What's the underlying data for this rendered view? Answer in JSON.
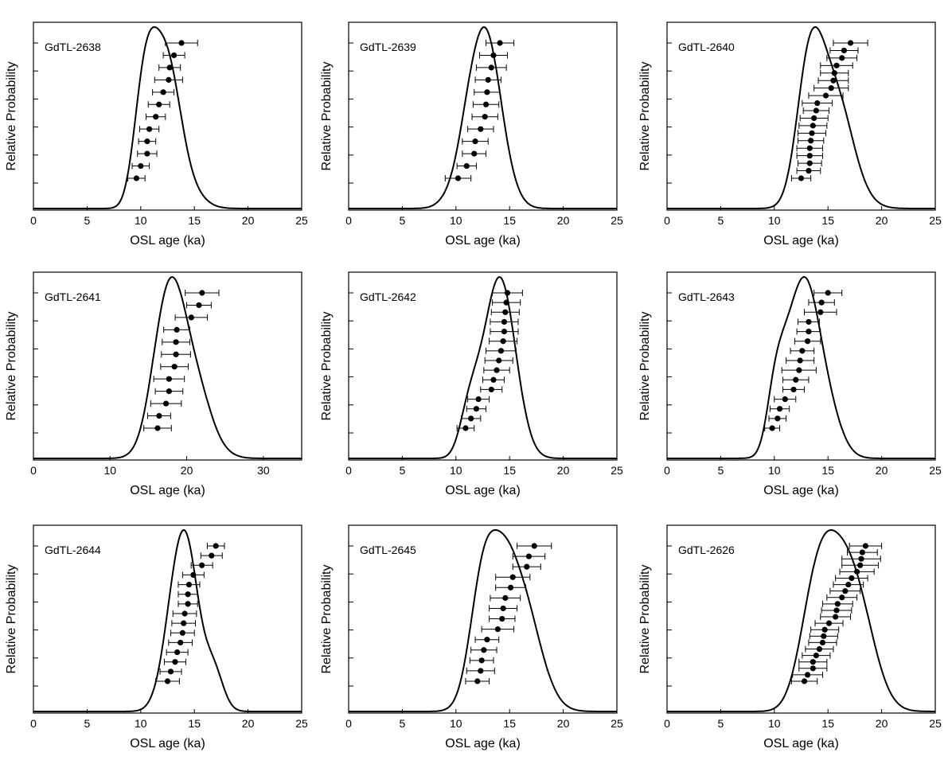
{
  "chart_data": [
    {
      "type": "scatter",
      "panel_label": "GdTL-2638",
      "xlabel": "OSL age (ka)",
      "ylabel": "Relative Probability",
      "xlim": [
        0,
        25
      ],
      "xticks": [
        0,
        5,
        10,
        15,
        20,
        25
      ],
      "curve_peak_ka": 11.8,
      "points": [
        {
          "age": 9.6,
          "err": 0.8
        },
        {
          "age": 10.0,
          "err": 0.8
        },
        {
          "age": 10.6,
          "err": 0.9
        },
        {
          "age": 10.6,
          "err": 0.8
        },
        {
          "age": 10.8,
          "err": 0.9
        },
        {
          "age": 11.4,
          "err": 0.9
        },
        {
          "age": 11.7,
          "err": 1.0
        },
        {
          "age": 12.1,
          "err": 1.0
        },
        {
          "age": 12.6,
          "err": 1.3
        },
        {
          "age": 12.7,
          "err": 1.0
        },
        {
          "age": 13.1,
          "err": 1.0
        },
        {
          "age": 13.8,
          "err": 1.5
        }
      ]
    },
    {
      "type": "scatter",
      "panel_label": "GdTL-2639",
      "xlabel": "OSL age (ka)",
      "ylabel": "Relative Probability",
      "xlim": [
        0,
        25
      ],
      "xticks": [
        0,
        5,
        10,
        15,
        20,
        25
      ],
      "curve_peak_ka": 12.7,
      "points": [
        {
          "age": 10.2,
          "err": 1.2
        },
        {
          "age": 11.0,
          "err": 0.9
        },
        {
          "age": 11.7,
          "err": 1.1
        },
        {
          "age": 11.8,
          "err": 1.2
        },
        {
          "age": 12.3,
          "err": 1.2
        },
        {
          "age": 12.7,
          "err": 1.2
        },
        {
          "age": 12.8,
          "err": 1.2
        },
        {
          "age": 12.9,
          "err": 1.2
        },
        {
          "age": 13.0,
          "err": 1.2
        },
        {
          "age": 13.3,
          "err": 1.4
        },
        {
          "age": 13.5,
          "err": 1.3
        },
        {
          "age": 14.1,
          "err": 1.3
        }
      ]
    },
    {
      "type": "scatter",
      "panel_label": "GdTL-2640",
      "xlabel": "OSL age (ka)",
      "ylabel": "Relative Probability",
      "xlim": [
        0,
        25
      ],
      "xticks": [
        0,
        5,
        10,
        15,
        20,
        25
      ],
      "curve_peak_ka": 13.9,
      "points": [
        {
          "age": 12.5,
          "err": 0.9
        },
        {
          "age": 13.2,
          "err": 1.1
        },
        {
          "age": 13.3,
          "err": 1.1
        },
        {
          "age": 13.3,
          "err": 1.2
        },
        {
          "age": 13.3,
          "err": 1.2
        },
        {
          "age": 13.4,
          "err": 1.2
        },
        {
          "age": 13.5,
          "err": 1.3
        },
        {
          "age": 13.6,
          "err": 1.3
        },
        {
          "age": 13.7,
          "err": 1.3
        },
        {
          "age": 13.9,
          "err": 1.2
        },
        {
          "age": 14.0,
          "err": 1.4
        },
        {
          "age": 14.8,
          "err": 1.6
        },
        {
          "age": 15.3,
          "err": 1.6
        },
        {
          "age": 15.5,
          "err": 1.4
        },
        {
          "age": 15.6,
          "err": 1.3
        },
        {
          "age": 15.8,
          "err": 1.5
        },
        {
          "age": 16.3,
          "err": 1.4
        },
        {
          "age": 16.5,
          "err": 1.3
        },
        {
          "age": 17.1,
          "err": 1.6
        }
      ]
    },
    {
      "type": "scatter",
      "panel_label": "GdTL-2641",
      "xlabel": "OSL age (ka)",
      "ylabel": "Relative Probability",
      "xlim": [
        0,
        35
      ],
      "xticks": [
        0,
        10,
        20,
        30
      ],
      "curve_peak_ka": 18.3,
      "points": [
        {
          "age": 16.2,
          "err": 1.8
        },
        {
          "age": 16.4,
          "err": 1.5
        },
        {
          "age": 17.3,
          "err": 2.0
        },
        {
          "age": 17.7,
          "err": 1.8
        },
        {
          "age": 17.7,
          "err": 2.0
        },
        {
          "age": 18.4,
          "err": 1.8
        },
        {
          "age": 18.6,
          "err": 1.9
        },
        {
          "age": 18.6,
          "err": 1.8
        },
        {
          "age": 18.7,
          "err": 1.7
        },
        {
          "age": 20.6,
          "err": 2.1
        },
        {
          "age": 21.6,
          "err": 1.6
        },
        {
          "age": 22.0,
          "err": 2.2
        }
      ]
    },
    {
      "type": "scatter",
      "panel_label": "GdTL-2642",
      "xlabel": "OSL age (ka)",
      "ylabel": "Relative Probability",
      "xlim": [
        0,
        25
      ],
      "xticks": [
        0,
        5,
        10,
        15,
        20,
        25
      ],
      "curve_peak_ka": 14.0,
      "points": [
        {
          "age": 10.9,
          "err": 0.8
        },
        {
          "age": 11.4,
          "err": 0.9
        },
        {
          "age": 11.9,
          "err": 0.9
        },
        {
          "age": 12.1,
          "err": 1.0
        },
        {
          "age": 13.3,
          "err": 1.0
        },
        {
          "age": 13.5,
          "err": 1.0
        },
        {
          "age": 13.8,
          "err": 1.2
        },
        {
          "age": 14.0,
          "err": 1.3
        },
        {
          "age": 14.2,
          "err": 1.4
        },
        {
          "age": 14.4,
          "err": 1.3
        },
        {
          "age": 14.5,
          "err": 1.3
        },
        {
          "age": 14.5,
          "err": 1.3
        },
        {
          "age": 14.6,
          "err": 1.3
        },
        {
          "age": 14.7,
          "err": 1.3
        },
        {
          "age": 14.8,
          "err": 1.4
        }
      ]
    },
    {
      "type": "scatter",
      "panel_label": "GdTL-2643",
      "xlabel": "OSL age (ka)",
      "ylabel": "Relative Probability",
      "xlim": [
        0,
        25
      ],
      "xticks": [
        0,
        5,
        10,
        15,
        20,
        25
      ],
      "curve_peak_ka": 12.6,
      "points": [
        {
          "age": 9.8,
          "err": 0.7
        },
        {
          "age": 10.3,
          "err": 0.8
        },
        {
          "age": 10.5,
          "err": 0.9
        },
        {
          "age": 11.0,
          "err": 1.0
        },
        {
          "age": 11.8,
          "err": 1.0
        },
        {
          "age": 12.0,
          "err": 1.2
        },
        {
          "age": 12.3,
          "err": 1.6
        },
        {
          "age": 12.4,
          "err": 1.3
        },
        {
          "age": 12.6,
          "err": 1.1
        },
        {
          "age": 13.1,
          "err": 1.2
        },
        {
          "age": 13.2,
          "err": 1.1
        },
        {
          "age": 13.2,
          "err": 1.0
        },
        {
          "age": 14.3,
          "err": 1.5
        },
        {
          "age": 14.4,
          "err": 1.2
        },
        {
          "age": 15.0,
          "err": 1.3
        }
      ]
    },
    {
      "type": "scatter",
      "panel_label": "GdTL-2644",
      "xlabel": "OSL age (ka)",
      "ylabel": "Relative Probability",
      "xlim": [
        0,
        25
      ],
      "xticks": [
        0,
        5,
        10,
        15,
        20,
        25
      ],
      "curve_peak_ka": 14.0,
      "points": [
        {
          "age": 12.5,
          "err": 1.1
        },
        {
          "age": 12.8,
          "err": 1.0
        },
        {
          "age": 13.2,
          "err": 1.0
        },
        {
          "age": 13.4,
          "err": 1.0
        },
        {
          "age": 13.7,
          "err": 1.1
        },
        {
          "age": 13.9,
          "err": 1.1
        },
        {
          "age": 14.0,
          "err": 1.1
        },
        {
          "age": 14.1,
          "err": 1.1
        },
        {
          "age": 14.4,
          "err": 0.9
        },
        {
          "age": 14.4,
          "err": 0.9
        },
        {
          "age": 14.5,
          "err": 1.0
        },
        {
          "age": 14.9,
          "err": 1.0
        },
        {
          "age": 15.7,
          "err": 1.0
        },
        {
          "age": 16.6,
          "err": 1.0
        },
        {
          "age": 17.0,
          "err": 0.8
        }
      ]
    },
    {
      "type": "scatter",
      "panel_label": "GdTL-2645",
      "xlabel": "OSL age (ka)",
      "ylabel": "Relative Probability",
      "xlim": [
        0,
        25
      ],
      "xticks": [
        0,
        5,
        10,
        15,
        20,
        25
      ],
      "curve_peak_ka": 14.8,
      "points": [
        {
          "age": 12.0,
          "err": 1.1
        },
        {
          "age": 12.3,
          "err": 1.3
        },
        {
          "age": 12.4,
          "err": 1.1
        },
        {
          "age": 12.6,
          "err": 1.2
        },
        {
          "age": 12.9,
          "err": 1.1
        },
        {
          "age": 13.9,
          "err": 1.5
        },
        {
          "age": 14.3,
          "err": 1.2
        },
        {
          "age": 14.4,
          "err": 1.3
        },
        {
          "age": 14.6,
          "err": 1.4
        },
        {
          "age": 15.1,
          "err": 1.4
        },
        {
          "age": 15.3,
          "err": 1.6
        },
        {
          "age": 16.6,
          "err": 1.3
        },
        {
          "age": 16.8,
          "err": 1.5
        },
        {
          "age": 17.3,
          "err": 1.6
        }
      ]
    },
    {
      "type": "scatter",
      "panel_label": "GdTL-2626",
      "xlabel": "OSL age (ka)",
      "ylabel": "Relative Probability",
      "xlim": [
        0,
        25
      ],
      "xticks": [
        0,
        5,
        10,
        15,
        20,
        25
      ],
      "curve_peak_ka": 15.9,
      "points": [
        {
          "age": 12.8,
          "err": 1.2
        },
        {
          "age": 13.1,
          "err": 1.4
        },
        {
          "age": 13.6,
          "err": 1.3
        },
        {
          "age": 13.6,
          "err": 1.3
        },
        {
          "age": 13.9,
          "err": 1.3
        },
        {
          "age": 14.2,
          "err": 1.3
        },
        {
          "age": 14.5,
          "err": 1.3
        },
        {
          "age": 14.6,
          "err": 1.3
        },
        {
          "age": 14.7,
          "err": 1.3
        },
        {
          "age": 15.1,
          "err": 1.3
        },
        {
          "age": 15.7,
          "err": 1.4
        },
        {
          "age": 15.8,
          "err": 1.4
        },
        {
          "age": 15.9,
          "err": 1.4
        },
        {
          "age": 16.3,
          "err": 1.4
        },
        {
          "age": 16.6,
          "err": 1.4
        },
        {
          "age": 16.9,
          "err": 1.4
        },
        {
          "age": 17.2,
          "err": 1.5
        },
        {
          "age": 17.7,
          "err": 1.6
        },
        {
          "age": 18.0,
          "err": 1.7
        },
        {
          "age": 18.1,
          "err": 1.8
        },
        {
          "age": 18.2,
          "err": 1.4
        },
        {
          "age": 18.5,
          "err": 1.5
        }
      ]
    }
  ]
}
